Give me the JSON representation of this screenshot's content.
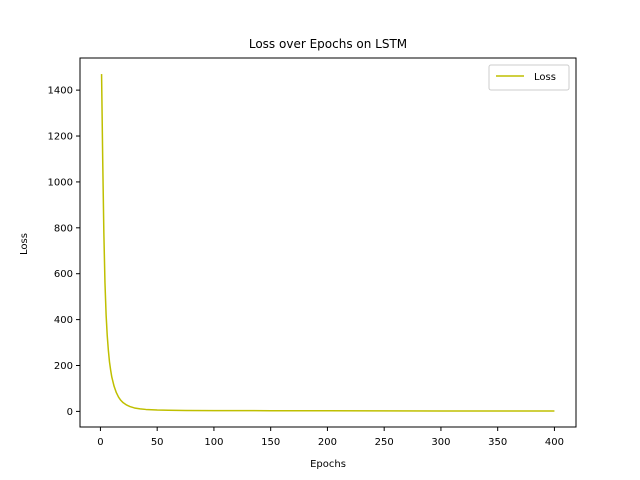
{
  "chart_data": {
    "type": "line",
    "title": "Loss over Epochs on LSTM",
    "xlabel": "Epochs",
    "ylabel": "Loss",
    "xlim": [
      -18,
      419
    ],
    "ylim": [
      -68,
      1540
    ],
    "x_ticks": [
      0,
      50,
      100,
      150,
      200,
      250,
      300,
      350,
      400
    ],
    "y_ticks": [
      0,
      200,
      400,
      600,
      800,
      1000,
      1200,
      1400
    ],
    "grid": false,
    "legend": {
      "position": "top-right"
    },
    "series": [
      {
        "name": "Loss",
        "color": "#bfbf00",
        "points": [
          [
            1,
            1470
          ],
          [
            2,
            1100
          ],
          [
            3,
            780
          ],
          [
            4,
            560
          ],
          [
            5,
            420
          ],
          [
            6,
            330
          ],
          [
            7,
            265
          ],
          [
            8,
            215
          ],
          [
            9,
            180
          ],
          [
            10,
            150
          ],
          [
            12,
            110
          ],
          [
            14,
            82
          ],
          [
            16,
            62
          ],
          [
            18,
            48
          ],
          [
            20,
            38
          ],
          [
            23,
            28
          ],
          [
            26,
            21
          ],
          [
            30,
            15
          ],
          [
            35,
            11
          ],
          [
            40,
            8.5
          ],
          [
            50,
            6
          ],
          [
            60,
            4.8
          ],
          [
            75,
            4
          ],
          [
            100,
            3.5
          ],
          [
            150,
            3
          ],
          [
            200,
            2.6
          ],
          [
            250,
            2.2
          ],
          [
            300,
            1.9
          ],
          [
            350,
            1.7
          ],
          [
            400,
            1.5
          ]
        ]
      }
    ]
  }
}
